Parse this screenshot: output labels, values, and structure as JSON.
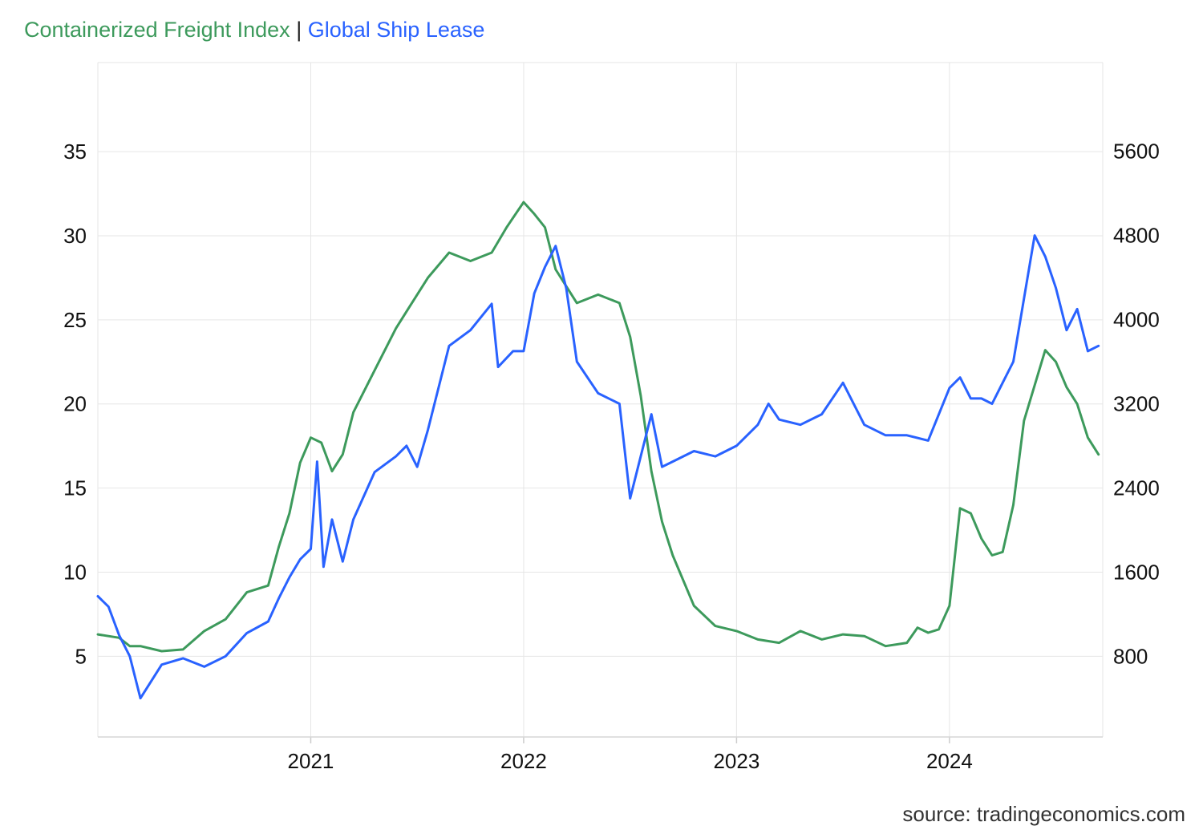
{
  "title": {
    "series1": "Containerized Freight Index",
    "separator": "|",
    "series2": "Global Ship Lease"
  },
  "source": "source: tradingeconomics.com",
  "colors": {
    "series1": "#3d9a5c",
    "series2": "#2962ff",
    "grid": "#e6e6e6"
  },
  "chart_data": {
    "type": "line",
    "grid": true,
    "x_ticks": [
      "2021",
      "2022",
      "2023",
      "2024"
    ],
    "x_range": [
      2020.0,
      2024.72
    ],
    "left_axis": {
      "series": "Containerized Freight Index",
      "ticks": [
        5,
        10,
        15,
        20,
        25,
        30,
        35
      ],
      "range": [
        0.2,
        40.3
      ]
    },
    "right_axis": {
      "series": "Global Ship Lease",
      "ticks": [
        800,
        1600,
        2400,
        3200,
        4000,
        4800,
        5600
      ],
      "range": [
        32,
        6444
      ]
    },
    "series": [
      {
        "name": "Containerized Freight Index",
        "axis": "left",
        "x": [
          2020.0,
          2020.1,
          2020.15,
          2020.2,
          2020.3,
          2020.4,
          2020.5,
          2020.6,
          2020.7,
          2020.8,
          2020.85,
          2020.9,
          2020.95,
          2021.0,
          2021.05,
          2021.1,
          2021.15,
          2021.2,
          2021.3,
          2021.4,
          2021.45,
          2021.55,
          2021.65,
          2021.75,
          2021.85,
          2021.92,
          2022.0,
          2022.05,
          2022.1,
          2022.15,
          2022.25,
          2022.35,
          2022.45,
          2022.5,
          2022.55,
          2022.6,
          2022.65,
          2022.7,
          2022.8,
          2022.9,
          2023.0,
          2023.1,
          2023.2,
          2023.3,
          2023.4,
          2023.5,
          2023.6,
          2023.7,
          2023.8,
          2023.85,
          2023.9,
          2023.95,
          2024.0,
          2024.05,
          2024.1,
          2024.15,
          2024.2,
          2024.25,
          2024.3,
          2024.35,
          2024.45,
          2024.5,
          2024.55,
          2024.6,
          2024.65,
          2024.7
        ],
        "values": [
          6.3,
          6.1,
          5.6,
          5.6,
          5.3,
          5.4,
          6.5,
          7.2,
          8.8,
          9.2,
          11.5,
          13.5,
          16.5,
          18.0,
          17.7,
          16.0,
          17.0,
          19.5,
          22.0,
          24.5,
          25.5,
          27.5,
          29.0,
          28.5,
          29.0,
          30.5,
          32.0,
          31.3,
          30.5,
          28.0,
          26.0,
          26.5,
          26.0,
          24.0,
          20.5,
          16.0,
          13.0,
          11.0,
          8.0,
          6.8,
          6.5,
          6.0,
          5.8,
          6.5,
          6.0,
          6.3,
          6.2,
          5.6,
          5.8,
          6.7,
          6.4,
          6.6,
          8.0,
          13.8,
          13.5,
          12.0,
          11.0,
          11.2,
          14.0,
          19.0,
          23.2,
          22.5,
          21.0,
          20.0,
          18.0,
          17.0
        ]
      },
      {
        "name": "Global Ship Lease",
        "axis": "right",
        "x": [
          2020.0,
          2020.05,
          2020.1,
          2020.15,
          2020.2,
          2020.3,
          2020.4,
          2020.5,
          2020.6,
          2020.7,
          2020.8,
          2020.85,
          2020.9,
          2020.95,
          2021.0,
          2021.03,
          2021.06,
          2021.1,
          2021.15,
          2021.2,
          2021.3,
          2021.4,
          2021.45,
          2021.5,
          2021.55,
          2021.65,
          2021.75,
          2021.85,
          2021.88,
          2021.95,
          2022.0,
          2022.05,
          2022.1,
          2022.15,
          2022.2,
          2022.25,
          2022.35,
          2022.45,
          2022.5,
          2022.55,
          2022.6,
          2022.65,
          2022.7,
          2022.8,
          2022.9,
          2023.0,
          2023.1,
          2023.15,
          2023.2,
          2023.3,
          2023.4,
          2023.5,
          2023.6,
          2023.7,
          2023.8,
          2023.9,
          2024.0,
          2024.05,
          2024.1,
          2024.15,
          2024.2,
          2024.25,
          2024.3,
          2024.35,
          2024.4,
          2024.45,
          2024.5,
          2024.55,
          2024.6,
          2024.65,
          2024.7
        ],
        "values": [
          1370,
          1270,
          1000,
          800,
          400,
          720,
          780,
          700,
          800,
          1020,
          1130,
          1350,
          1550,
          1720,
          1820,
          2650,
          1650,
          2100,
          1700,
          2100,
          2550,
          2700,
          2800,
          2600,
          2950,
          3750,
          3900,
          4150,
          3550,
          3700,
          3700,
          4250,
          4500,
          4700,
          4300,
          3600,
          3300,
          3200,
          2300,
          2700,
          3100,
          2600,
          2650,
          2750,
          2700,
          2800,
          3000,
          3200,
          3050,
          3000,
          3100,
          3400,
          3000,
          2900,
          2900,
          2850,
          3350,
          3450,
          3250,
          3250,
          3200,
          3400,
          3600,
          4200,
          4800,
          4600,
          4300,
          3900,
          4100,
          3700,
          3750
        ]
      }
    ]
  }
}
